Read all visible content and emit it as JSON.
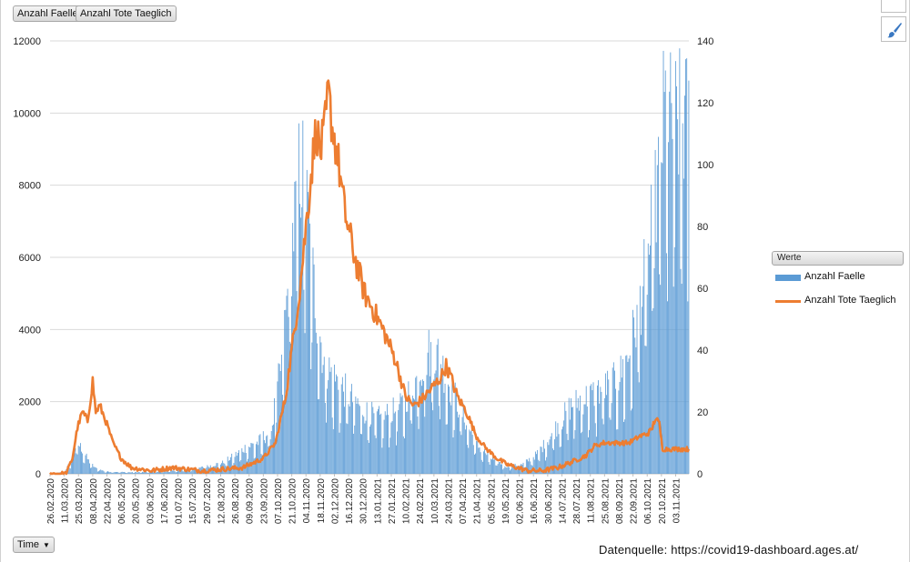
{
  "buttons": {
    "faelle": "Anzahl Faelle",
    "tote": "Anzahl Tote Taeglich",
    "time": "Time"
  },
  "legend": {
    "title": "Werte",
    "items": [
      "Anzahl Faelle",
      "Anzahl Tote Taeglich"
    ]
  },
  "source": "Datenquelle: https://covid19-dashboard.ages.at/",
  "icons": {
    "brush": "paintbrush-icon"
  },
  "colors": {
    "bars": "#5b9bd5",
    "line": "#ed7d31",
    "grid": "#d9d9d9"
  },
  "chart_data": {
    "type": "bar+line",
    "start_date": "26.02.2020",
    "days": 630,
    "x_tick_labels": [
      "26.02.2020",
      "11.03.2020",
      "25.03.2020",
      "08.04.2020",
      "22.04.2020",
      "06.05.2020",
      "20.05.2020",
      "03.06.2020",
      "17.06.2020",
      "01.07.2020",
      "15.07.2020",
      "29.07.2020",
      "12.08.2020",
      "26.08.2020",
      "09.09.2020",
      "23.09.2020",
      "07.10.2020",
      "21.10.2020",
      "04.11.2020",
      "18.11.2020",
      "02.12.2020",
      "16.12.2020",
      "30.12.2020",
      "13.01.2021",
      "27.01.2021",
      "10.02.2021",
      "24.02.2021",
      "10.03.2021",
      "24.03.2021",
      "07.04.2021",
      "21.04.2021",
      "05.05.2021",
      "19.05.2021",
      "02.06.2021",
      "16.06.2021",
      "30.06.2021",
      "14.07.2021",
      "28.07.2021",
      "11.08.2021",
      "25.08.2021",
      "08.09.2021",
      "22.09.2021",
      "06.10.2021",
      "20.10.2021",
      "03.11.2021"
    ],
    "y_left": {
      "min": 0,
      "max": 12000,
      "ticks": [
        0,
        2000,
        4000,
        6000,
        8000,
        10000,
        12000
      ]
    },
    "y_right": {
      "min": 0,
      "max": 140,
      "ticks": [
        0,
        20,
        40,
        60,
        80,
        100,
        120,
        140
      ]
    },
    "series": [
      {
        "name": "Anzahl Faelle",
        "type": "bar",
        "axis": "left",
        "keypoints": [
          [
            0,
            0
          ],
          [
            14,
            50
          ],
          [
            22,
            400
          ],
          [
            26,
            850
          ],
          [
            31,
            700
          ],
          [
            38,
            350
          ],
          [
            45,
            150
          ],
          [
            55,
            60
          ],
          [
            80,
            40
          ],
          [
            110,
            60
          ],
          [
            140,
            120
          ],
          [
            155,
            200
          ],
          [
            170,
            300
          ],
          [
            182,
            500
          ],
          [
            192,
            700
          ],
          [
            205,
            850
          ],
          [
            218,
            1200
          ],
          [
            228,
            3000
          ],
          [
            236,
            5500
          ],
          [
            242,
            7200
          ],
          [
            246,
            8400
          ],
          [
            250,
            8000
          ],
          [
            255,
            6500
          ],
          [
            262,
            4500
          ],
          [
            270,
            3000
          ],
          [
            280,
            2600
          ],
          [
            295,
            2100
          ],
          [
            310,
            1700
          ],
          [
            325,
            1500
          ],
          [
            345,
            1800
          ],
          [
            360,
            2500
          ],
          [
            372,
            3300
          ],
          [
            382,
            3200
          ],
          [
            392,
            2500
          ],
          [
            405,
            1700
          ],
          [
            420,
            800
          ],
          [
            435,
            400
          ],
          [
            450,
            200
          ],
          [
            465,
            250
          ],
          [
            478,
            500
          ],
          [
            490,
            900
          ],
          [
            502,
            1400
          ],
          [
            512,
            1800
          ],
          [
            522,
            2000
          ],
          [
            532,
            2100
          ],
          [
            543,
            2300
          ],
          [
            552,
            2400
          ],
          [
            560,
            2600
          ],
          [
            570,
            3200
          ],
          [
            580,
            4500
          ],
          [
            589,
            5800
          ],
          [
            597,
            7500
          ],
          [
            602,
            9000
          ],
          [
            606,
            10000
          ],
          [
            610,
            9500
          ]
        ],
        "notable_values": {
          "peak_nov_2020": 8400,
          "last_day": 10900
        }
      },
      {
        "name": "Anzahl Tote Taeglich",
        "type": "line",
        "axis": "right",
        "keypoints": [
          [
            0,
            0
          ],
          [
            16,
            0
          ],
          [
            22,
            5
          ],
          [
            27,
            15
          ],
          [
            32,
            20
          ],
          [
            37,
            17
          ],
          [
            42,
            30
          ],
          [
            45,
            20
          ],
          [
            49,
            22
          ],
          [
            55,
            17
          ],
          [
            62,
            10
          ],
          [
            70,
            5
          ],
          [
            80,
            2
          ],
          [
            100,
            1
          ],
          [
            120,
            2
          ],
          [
            150,
            1
          ],
          [
            190,
            2
          ],
          [
            210,
            5
          ],
          [
            222,
            10
          ],
          [
            232,
            25
          ],
          [
            240,
            45
          ],
          [
            246,
            60
          ],
          [
            252,
            80
          ],
          [
            258,
            100
          ],
          [
            262,
            112
          ],
          [
            266,
            104
          ],
          [
            270,
            110
          ],
          [
            274,
            123
          ],
          [
            278,
            112
          ],
          [
            283,
            103
          ],
          [
            290,
            85
          ],
          [
            300,
            70
          ],
          [
            310,
            58
          ],
          [
            320,
            52
          ],
          [
            330,
            45
          ],
          [
            340,
            37
          ],
          [
            350,
            25
          ],
          [
            358,
            22
          ],
          [
            366,
            24
          ],
          [
            374,
            27
          ],
          [
            382,
            30
          ],
          [
            386,
            32
          ],
          [
            390,
            35
          ],
          [
            395,
            31
          ],
          [
            401,
            25
          ],
          [
            410,
            20
          ],
          [
            420,
            12
          ],
          [
            430,
            8
          ],
          [
            440,
            5
          ],
          [
            450,
            3
          ],
          [
            470,
            1
          ],
          [
            485,
            1
          ],
          [
            500,
            2
          ],
          [
            515,
            4
          ],
          [
            528,
            6
          ],
          [
            536,
            9
          ],
          [
            545,
            10
          ],
          [
            555,
            10
          ],
          [
            570,
            10
          ],
          [
            580,
            12
          ],
          [
            588,
            13
          ],
          [
            592,
            14
          ],
          [
            596,
            18
          ],
          [
            600,
            16
          ],
          [
            603,
            8
          ]
        ],
        "notable_values": {
          "max": 123,
          "spring_2020_peak": 30
        }
      }
    ],
    "legend_position": "right",
    "grid": true
  }
}
